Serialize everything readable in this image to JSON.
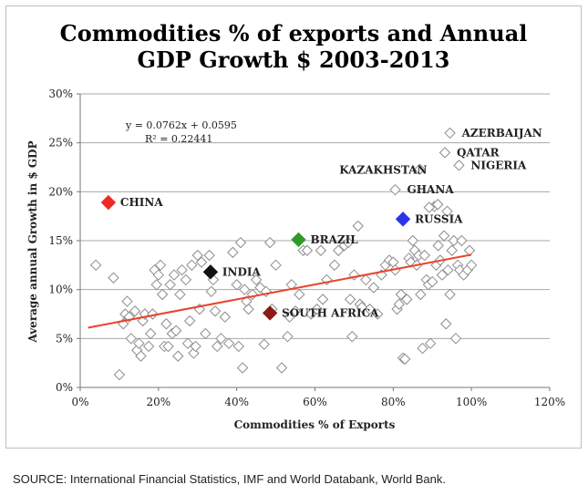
{
  "chart_data": {
    "type": "scatter",
    "title_lines": [
      "Commodities % of exports and Annual",
      "GDP Growth $ 2003-2013"
    ],
    "xlabel": "Commodities % of Exports",
    "ylabel": "Average annual Growth in $ GDP",
    "xlim": [
      0,
      120
    ],
    "ylim": [
      0,
      30
    ],
    "x_ticks": [
      0,
      20,
      40,
      60,
      80,
      100,
      120
    ],
    "y_ticks": [
      0,
      5,
      10,
      15,
      20,
      25,
      30
    ],
    "x_tick_labels": [
      "0%",
      "20%",
      "40%",
      "60%",
      "80%",
      "100%",
      "120%"
    ],
    "y_tick_labels": [
      "0%",
      "5%",
      "10%",
      "15%",
      "20%",
      "25%",
      "30%"
    ],
    "grid": "horizontal",
    "trendline": {
      "equation": "y = 0.0762x + 0.0595",
      "r_squared": "R² = 0.22441",
      "x_range": [
        2,
        100
      ],
      "slope": 0.0762,
      "intercept": 0.0595,
      "color": "#e8442a"
    },
    "highlighted": [
      {
        "label": "CHINA",
        "x": 7.2,
        "y": 18.9,
        "color": "#ee2a24"
      },
      {
        "label": "BRAZIL",
        "x": 55.8,
        "y": 15.1,
        "color": "#2f9a2a"
      },
      {
        "label": "RUSSIA",
        "x": 82.5,
        "y": 17.2,
        "color": "#2a33e8"
      },
      {
        "label": "INDIA",
        "x": 33.3,
        "y": 11.8,
        "color": "#111111"
      },
      {
        "label": "SOUTH AFRICA",
        "x": 48.5,
        "y": 7.6,
        "color": "#8a1c14"
      }
    ],
    "labeled_points": [
      {
        "label": "AZERBAIJAN",
        "x": 94.5,
        "y": 26.0
      },
      {
        "label": "QATAR",
        "x": 93.2,
        "y": 24.0
      },
      {
        "label": "NIGERIA",
        "x": 96.8,
        "y": 22.7
      },
      {
        "label": "KAZAKHSTAN",
        "x": 86.8,
        "y": 22.3
      },
      {
        "label": "GHANA",
        "x": 80.5,
        "y": 20.2
      }
    ],
    "points": [
      [
        4,
        12.5
      ],
      [
        8.5,
        11.2
      ],
      [
        10,
        1.3
      ],
      [
        11,
        6.5
      ],
      [
        11.5,
        7.5
      ],
      [
        12,
        8.8
      ],
      [
        12.5,
        7.2
      ],
      [
        13,
        5
      ],
      [
        14,
        7.8
      ],
      [
        14.5,
        3.8
      ],
      [
        15,
        4.5
      ],
      [
        15.5,
        3.2
      ],
      [
        16,
        6.8
      ],
      [
        16.5,
        7.5
      ],
      [
        17.5,
        4.2
      ],
      [
        18,
        5.5
      ],
      [
        18.5,
        7.5
      ],
      [
        19,
        12
      ],
      [
        19.5,
        10.5
      ],
      [
        20,
        11.5
      ],
      [
        20.5,
        12.5
      ],
      [
        21,
        9.5
      ],
      [
        21.5,
        4.2
      ],
      [
        22,
        6.5
      ],
      [
        22.5,
        4.2
      ],
      [
        23,
        10.5
      ],
      [
        23.5,
        5.5
      ],
      [
        24,
        11.5
      ],
      [
        24.5,
        5.8
      ],
      [
        25,
        3.2
      ],
      [
        25.5,
        9.5
      ],
      [
        26,
        12
      ],
      [
        27,
        11
      ],
      [
        27.5,
        4.5
      ],
      [
        28,
        6.8
      ],
      [
        28.5,
        12.5
      ],
      [
        29,
        3.5
      ],
      [
        29.5,
        4.2
      ],
      [
        30,
        13.5
      ],
      [
        30.5,
        8
      ],
      [
        31,
        12.8
      ],
      [
        32,
        5.5
      ],
      [
        33,
        13.5
      ],
      [
        33.5,
        9.8
      ],
      [
        34,
        11
      ],
      [
        34.5,
        7.8
      ],
      [
        35,
        4.2
      ],
      [
        36,
        5
      ],
      [
        37,
        7.2
      ],
      [
        38,
        4.5
      ],
      [
        39,
        13.8
      ],
      [
        40,
        10.5
      ],
      [
        40.5,
        4.2
      ],
      [
        41,
        14.8
      ],
      [
        41.5,
        2
      ],
      [
        42,
        10
      ],
      [
        42.5,
        8.8
      ],
      [
        43,
        8
      ],
      [
        44,
        9.5
      ],
      [
        45,
        11
      ],
      [
        46,
        10.2
      ],
      [
        47,
        4.4
      ],
      [
        47.5,
        9.8
      ],
      [
        48.5,
        14.8
      ],
      [
        49,
        8
      ],
      [
        50,
        12.5
      ],
      [
        51.5,
        2
      ],
      [
        53,
        5.2
      ],
      [
        53.5,
        7.2
      ],
      [
        54,
        10.5
      ],
      [
        55,
        7.8
      ],
      [
        56,
        9.5
      ],
      [
        57,
        14
      ],
      [
        58,
        14
      ],
      [
        59,
        7.5
      ],
      [
        60.5,
        8
      ],
      [
        61.5,
        14
      ],
      [
        62,
        9
      ],
      [
        63,
        11
      ],
      [
        65,
        12.5
      ],
      [
        66,
        14
      ],
      [
        67.5,
        14.5
      ],
      [
        68.5,
        14.8
      ],
      [
        69,
        9
      ],
      [
        69.5,
        5.2
      ],
      [
        70,
        11.5
      ],
      [
        71,
        16.5
      ],
      [
        71.5,
        8.5
      ],
      [
        72,
        8.2
      ],
      [
        73,
        11
      ],
      [
        74,
        8
      ],
      [
        75,
        10.2
      ],
      [
        76,
        7.5
      ],
      [
        77,
        11.5
      ],
      [
        78,
        12.5
      ],
      [
        79,
        13
      ],
      [
        80,
        12.8
      ],
      [
        80.5,
        12
      ],
      [
        81,
        8
      ],
      [
        81.5,
        8.5
      ],
      [
        82,
        9.5
      ],
      [
        82.5,
        3
      ],
      [
        83,
        2.9
      ],
      [
        83.5,
        9
      ],
      [
        84,
        13.2
      ],
      [
        84.5,
        12.8
      ],
      [
        85,
        15
      ],
      [
        85.5,
        14
      ],
      [
        86,
        12.5
      ],
      [
        86.5,
        13.5
      ],
      [
        87,
        9.5
      ],
      [
        87.5,
        4
      ],
      [
        88,
        13.5
      ],
      [
        88.5,
        11
      ],
      [
        89,
        10.5
      ],
      [
        89.5,
        4.5
      ],
      [
        90,
        10.8
      ],
      [
        90.5,
        18.5
      ],
      [
        91,
        12.5
      ],
      [
        91.5,
        14.5
      ],
      [
        92,
        13
      ],
      [
        92.5,
        11.5
      ],
      [
        93,
        15.5
      ],
      [
        93.5,
        6.5
      ],
      [
        94,
        12
      ],
      [
        94.5,
        9.5
      ],
      [
        95,
        14
      ],
      [
        95.5,
        15
      ],
      [
        96,
        5
      ],
      [
        96.5,
        12.5
      ],
      [
        97,
        12
      ],
      [
        97.5,
        15
      ],
      [
        98,
        11.5
      ],
      [
        99,
        12
      ],
      [
        99.5,
        14
      ],
      [
        100,
        12.5
      ],
      [
        89.2,
        18.4
      ],
      [
        91.4,
        18.7
      ],
      [
        93.8,
        18
      ]
    ]
  },
  "source_note": "SOURCE: International Financial Statistics, IMF and World Databank, World Bank."
}
